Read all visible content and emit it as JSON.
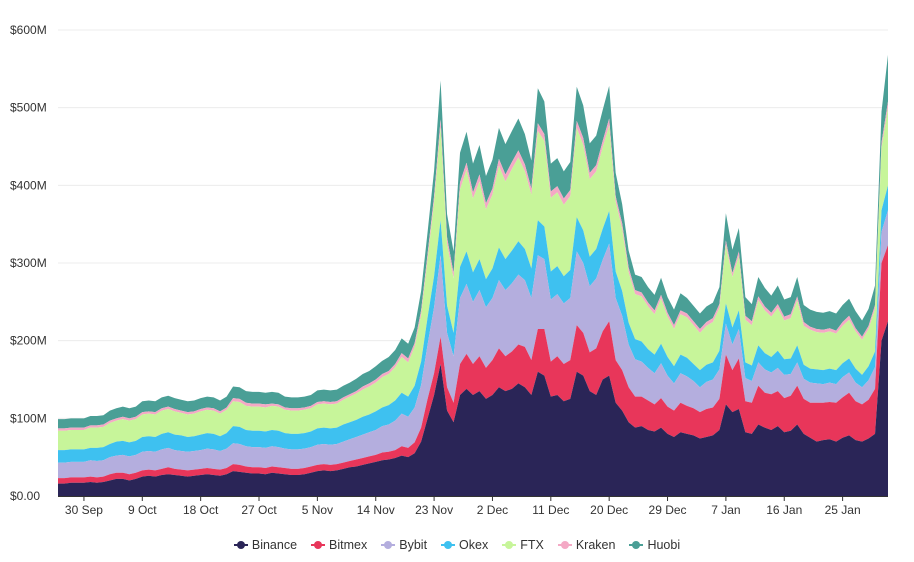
{
  "chart_data": {
    "type": "area",
    "stacked": true,
    "title": "",
    "xlabel": "",
    "ylabel": "",
    "ylim": [
      0,
      600
    ],
    "y_unit": "M",
    "y_ticks": [
      0,
      100,
      200,
      300,
      400,
      500,
      600
    ],
    "y_tick_labels": [
      "$0.00",
      "$100M",
      "$200M",
      "$300M",
      "$400M",
      "$500M",
      "$600M"
    ],
    "x_tick_labels": [
      "30 Sep",
      "9 Oct",
      "18 Oct",
      "27 Oct",
      "5 Nov",
      "14 Nov",
      "23 Nov",
      "2 Dec",
      "11 Dec",
      "20 Dec",
      "29 Dec",
      "7 Jan",
      "16 Jan",
      "25 Jan"
    ],
    "x_tick_index": [
      4,
      13,
      22,
      31,
      40,
      49,
      58,
      67,
      76,
      85,
      94,
      103,
      112,
      121
    ],
    "legend_position": "bottom",
    "x": [
      "26 Sep",
      "27 Sep",
      "28 Sep",
      "29 Sep",
      "30 Sep",
      "1 Oct",
      "2 Oct",
      "3 Oct",
      "4 Oct",
      "5 Oct",
      "6 Oct",
      "7 Oct",
      "8 Oct",
      "9 Oct",
      "10 Oct",
      "11 Oct",
      "12 Oct",
      "13 Oct",
      "14 Oct",
      "15 Oct",
      "16 Oct",
      "17 Oct",
      "18 Oct",
      "19 Oct",
      "20 Oct",
      "21 Oct",
      "22 Oct",
      "23 Oct",
      "24 Oct",
      "25 Oct",
      "26 Oct",
      "27 Oct",
      "28 Oct",
      "29 Oct",
      "30 Oct",
      "31 Oct",
      "1 Nov",
      "2 Nov",
      "3 Nov",
      "4 Nov",
      "5 Nov",
      "6 Nov",
      "7 Nov",
      "8 Nov",
      "9 Nov",
      "10 Nov",
      "11 Nov",
      "12 Nov",
      "13 Nov",
      "14 Nov",
      "15 Nov",
      "16 Nov",
      "17 Nov",
      "18 Nov",
      "19 Nov",
      "20 Nov",
      "21 Nov",
      "22 Nov",
      "23 Nov",
      "24 Nov",
      "25 Nov",
      "26 Nov",
      "27 Nov",
      "28 Nov",
      "29 Nov",
      "30 Nov",
      "1 Dec",
      "2 Dec",
      "3 Dec",
      "4 Dec",
      "5 Dec",
      "6 Dec",
      "7 Dec",
      "8 Dec",
      "9 Dec",
      "10 Dec",
      "11 Dec",
      "12 Dec",
      "13 Dec",
      "14 Dec",
      "15 Dec",
      "16 Dec",
      "17 Dec",
      "18 Dec",
      "19 Dec",
      "20 Dec",
      "21 Dec",
      "22 Dec",
      "23 Dec",
      "24 Dec",
      "25 Dec",
      "26 Dec",
      "27 Dec",
      "28 Dec",
      "29 Dec",
      "30 Dec",
      "31 Dec",
      "1 Jan",
      "2 Jan",
      "3 Jan",
      "4 Jan",
      "5 Jan",
      "6 Jan",
      "7 Jan",
      "8 Jan",
      "9 Jan",
      "10 Jan",
      "11 Jan",
      "12 Jan",
      "13 Jan",
      "14 Jan",
      "15 Jan",
      "16 Jan",
      "17 Jan",
      "18 Jan",
      "19 Jan",
      "20 Jan",
      "21 Jan",
      "22 Jan",
      "23 Jan",
      "24 Jan",
      "25 Jan",
      "26 Jan",
      "27 Jan",
      "28 Jan",
      "29 Jan",
      "30 Jan",
      "31 Jan",
      "1 Feb"
    ],
    "series": [
      {
        "name": "Binance",
        "color": "#2a2557",
        "values": [
          16,
          16,
          17,
          17,
          17,
          18,
          17,
          18,
          20,
          22,
          22,
          20,
          22,
          25,
          26,
          25,
          27,
          28,
          27,
          26,
          25,
          26,
          27,
          28,
          27,
          26,
          28,
          32,
          31,
          30,
          29,
          29,
          28,
          30,
          29,
          28,
          27,
          27,
          28,
          30,
          32,
          33,
          32,
          33,
          35,
          37,
          38,
          40,
          42,
          44,
          46,
          47,
          49,
          52,
          50,
          55,
          70,
          100,
          130,
          170,
          110,
          95,
          130,
          138,
          130,
          135,
          125,
          130,
          140,
          135,
          138,
          145,
          140,
          130,
          160,
          155,
          128,
          130,
          122,
          125,
          160,
          155,
          135,
          130,
          150,
          155,
          120,
          110,
          95,
          88,
          90,
          85,
          83,
          88,
          80,
          76,
          82,
          80,
          78,
          74,
          76,
          78,
          85,
          118,
          108,
          112,
          82,
          80,
          92,
          88,
          85,
          90,
          82,
          84,
          92,
          80,
          75,
          70,
          72,
          73,
          70,
          75,
          78,
          72,
          70,
          74,
          80,
          200,
          225
        ]
      },
      {
        "name": "Bitmex",
        "color": "#e8365a",
        "values": [
          7,
          7,
          7,
          7,
          7,
          7,
          7,
          7,
          8,
          8,
          8,
          8,
          8,
          8,
          8,
          8,
          8,
          9,
          8,
          8,
          8,
          8,
          8,
          8,
          8,
          8,
          8,
          9,
          9,
          8,
          8,
          8,
          8,
          8,
          8,
          8,
          8,
          8,
          8,
          8,
          8,
          8,
          8,
          8,
          8,
          8,
          9,
          9,
          9,
          9,
          10,
          10,
          10,
          12,
          12,
          14,
          18,
          25,
          28,
          35,
          30,
          25,
          40,
          45,
          40,
          45,
          40,
          45,
          50,
          45,
          48,
          50,
          52,
          45,
          55,
          60,
          45,
          50,
          48,
          50,
          60,
          55,
          50,
          60,
          62,
          70,
          55,
          52,
          45,
          40,
          38,
          38,
          35,
          38,
          35,
          34,
          38,
          36,
          35,
          34,
          36,
          36,
          40,
          64,
          54,
          65,
          40,
          40,
          50,
          45,
          46,
          45,
          44,
          45,
          50,
          45,
          45,
          50,
          48,
          48,
          50,
          52,
          55,
          50,
          48,
          50,
          58,
          100,
          98
        ]
      },
      {
        "name": "Bybit",
        "color": "#b4aede",
        "values": [
          20,
          20,
          20,
          20,
          20,
          21,
          21,
          21,
          22,
          22,
          23,
          23,
          23,
          24,
          24,
          24,
          25,
          25,
          24,
          24,
          24,
          24,
          24,
          25,
          25,
          24,
          25,
          27,
          27,
          26,
          26,
          26,
          26,
          26,
          26,
          25,
          25,
          25,
          25,
          25,
          26,
          26,
          26,
          26,
          27,
          28,
          29,
          30,
          31,
          32,
          34,
          35,
          38,
          42,
          40,
          45,
          55,
          70,
          85,
          105,
          70,
          60,
          85,
          90,
          80,
          85,
          78,
          80,
          88,
          85,
          88,
          90,
          86,
          80,
          95,
          90,
          80,
          80,
          78,
          80,
          95,
          90,
          85,
          90,
          92,
          100,
          80,
          70,
          55,
          48,
          45,
          42,
          40,
          45,
          40,
          35,
          38,
          38,
          35,
          32,
          35,
          36,
          38,
          40,
          33,
          38,
          30,
          28,
          30,
          30,
          28,
          30,
          30,
          28,
          30,
          26,
          26,
          25,
          24,
          25,
          24,
          26,
          26,
          24,
          22,
          25,
          28,
          40,
          45
        ]
      },
      {
        "name": "Okex",
        "color": "#3ec1f0",
        "values": [
          16,
          16,
          16,
          16,
          16,
          16,
          17,
          17,
          17,
          18,
          18,
          18,
          18,
          19,
          19,
          19,
          20,
          20,
          20,
          20,
          19,
          19,
          20,
          20,
          20,
          19,
          20,
          22,
          22,
          21,
          21,
          21,
          21,
          21,
          21,
          20,
          20,
          20,
          20,
          20,
          21,
          21,
          21,
          21,
          22,
          22,
          22,
          23,
          23,
          24,
          24,
          25,
          26,
          27,
          26,
          28,
          30,
          35,
          40,
          45,
          35,
          30,
          40,
          42,
          38,
          40,
          36,
          38,
          42,
          40,
          42,
          43,
          40,
          38,
          45,
          42,
          36,
          36,
          35,
          36,
          44,
          42,
          38,
          38,
          40,
          42,
          34,
          32,
          28,
          26,
          26,
          24,
          24,
          25,
          24,
          22,
          24,
          24,
          22,
          22,
          22,
          22,
          24,
          26,
          22,
          24,
          20,
          20,
          22,
          21,
          20,
          22,
          20,
          20,
          22,
          18,
          18,
          18,
          18,
          18,
          18,
          18,
          18,
          18,
          16,
          18,
          20,
          28,
          32
        ]
      },
      {
        "name": "FTX",
        "color": "#c7f59a",
        "values": [
          25,
          25,
          25,
          25,
          25,
          26,
          26,
          26,
          27,
          27,
          28,
          28,
          28,
          29,
          29,
          29,
          30,
          30,
          30,
          29,
          29,
          29,
          30,
          30,
          30,
          29,
          30,
          32,
          32,
          31,
          31,
          31,
          31,
          31,
          31,
          30,
          30,
          30,
          30,
          30,
          31,
          31,
          31,
          31,
          32,
          33,
          34,
          35,
          36,
          37,
          39,
          40,
          43,
          46,
          44,
          50,
          60,
          75,
          95,
          120,
          80,
          70,
          100,
          105,
          95,
          100,
          90,
          95,
          105,
          100,
          105,
          108,
          100,
          95,
          115,
          110,
          95,
          95,
          92,
          95,
          115,
          110,
          100,
          100,
          105,
          110,
          90,
          80,
          65,
          58,
          58,
          55,
          52,
          58,
          52,
          48,
          52,
          52,
          50,
          48,
          50,
          52,
          55,
          75,
          65,
          70,
          55,
          52,
          58,
          55,
          52,
          55,
          50,
          52,
          58,
          50,
          50,
          48,
          48,
          48,
          47,
          48,
          50,
          48,
          45,
          48,
          55,
          80,
          100
        ]
      },
      {
        "name": "Kraken",
        "color": "#f4a9c5",
        "values": [
          3,
          3,
          3,
          3,
          3,
          3,
          3,
          3,
          3,
          3,
          3,
          3,
          3,
          3,
          3,
          3,
          3,
          3,
          3,
          3,
          3,
          3,
          3,
          3,
          3,
          3,
          3,
          4,
          4,
          4,
          4,
          4,
          4,
          3,
          3,
          3,
          3,
          3,
          3,
          3,
          3,
          3,
          3,
          3,
          3,
          3,
          3,
          4,
          4,
          4,
          4,
          4,
          4,
          5,
          5,
          5,
          6,
          7,
          8,
          10,
          8,
          7,
          9,
          9,
          8,
          9,
          8,
          8,
          9,
          9,
          9,
          9,
          9,
          8,
          10,
          9,
          8,
          8,
          8,
          8,
          9,
          9,
          8,
          8,
          8,
          9,
          7,
          7,
          6,
          5,
          5,
          5,
          5,
          5,
          5,
          5,
          5,
          5,
          5,
          5,
          5,
          5,
          5,
          6,
          5,
          6,
          5,
          5,
          5,
          5,
          5,
          5,
          5,
          5,
          5,
          5,
          4,
          4,
          4,
          4,
          4,
          5,
          5,
          4,
          4,
          4,
          5,
          7,
          8
        ]
      },
      {
        "name": "Huobi",
        "color": "#4a9f96",
        "values": [
          12,
          12,
          12,
          12,
          12,
          12,
          12,
          12,
          13,
          13,
          13,
          13,
          13,
          14,
          14,
          14,
          14,
          14,
          14,
          14,
          14,
          14,
          14,
          14,
          14,
          14,
          14,
          15,
          15,
          15,
          15,
          15,
          15,
          15,
          15,
          14,
          14,
          14,
          14,
          14,
          15,
          15,
          15,
          15,
          15,
          15,
          16,
          16,
          16,
          17,
          17,
          18,
          18,
          19,
          19,
          20,
          25,
          28,
          33,
          50,
          30,
          28,
          38,
          40,
          37,
          38,
          35,
          37,
          40,
          39,
          40,
          41,
          39,
          36,
          45,
          42,
          36,
          36,
          35,
          36,
          44,
          42,
          38,
          38,
          40,
          42,
          30,
          25,
          22,
          20,
          20,
          20,
          20,
          22,
          20,
          20,
          22,
          20,
          20,
          20,
          20,
          20,
          22,
          35,
          30,
          30,
          24,
          22,
          25,
          24,
          22,
          24,
          22,
          22,
          25,
          22,
          22,
          22,
          22,
          22,
          22,
          22,
          22,
          22,
          21,
          22,
          25,
          40,
          60
        ]
      }
    ]
  }
}
